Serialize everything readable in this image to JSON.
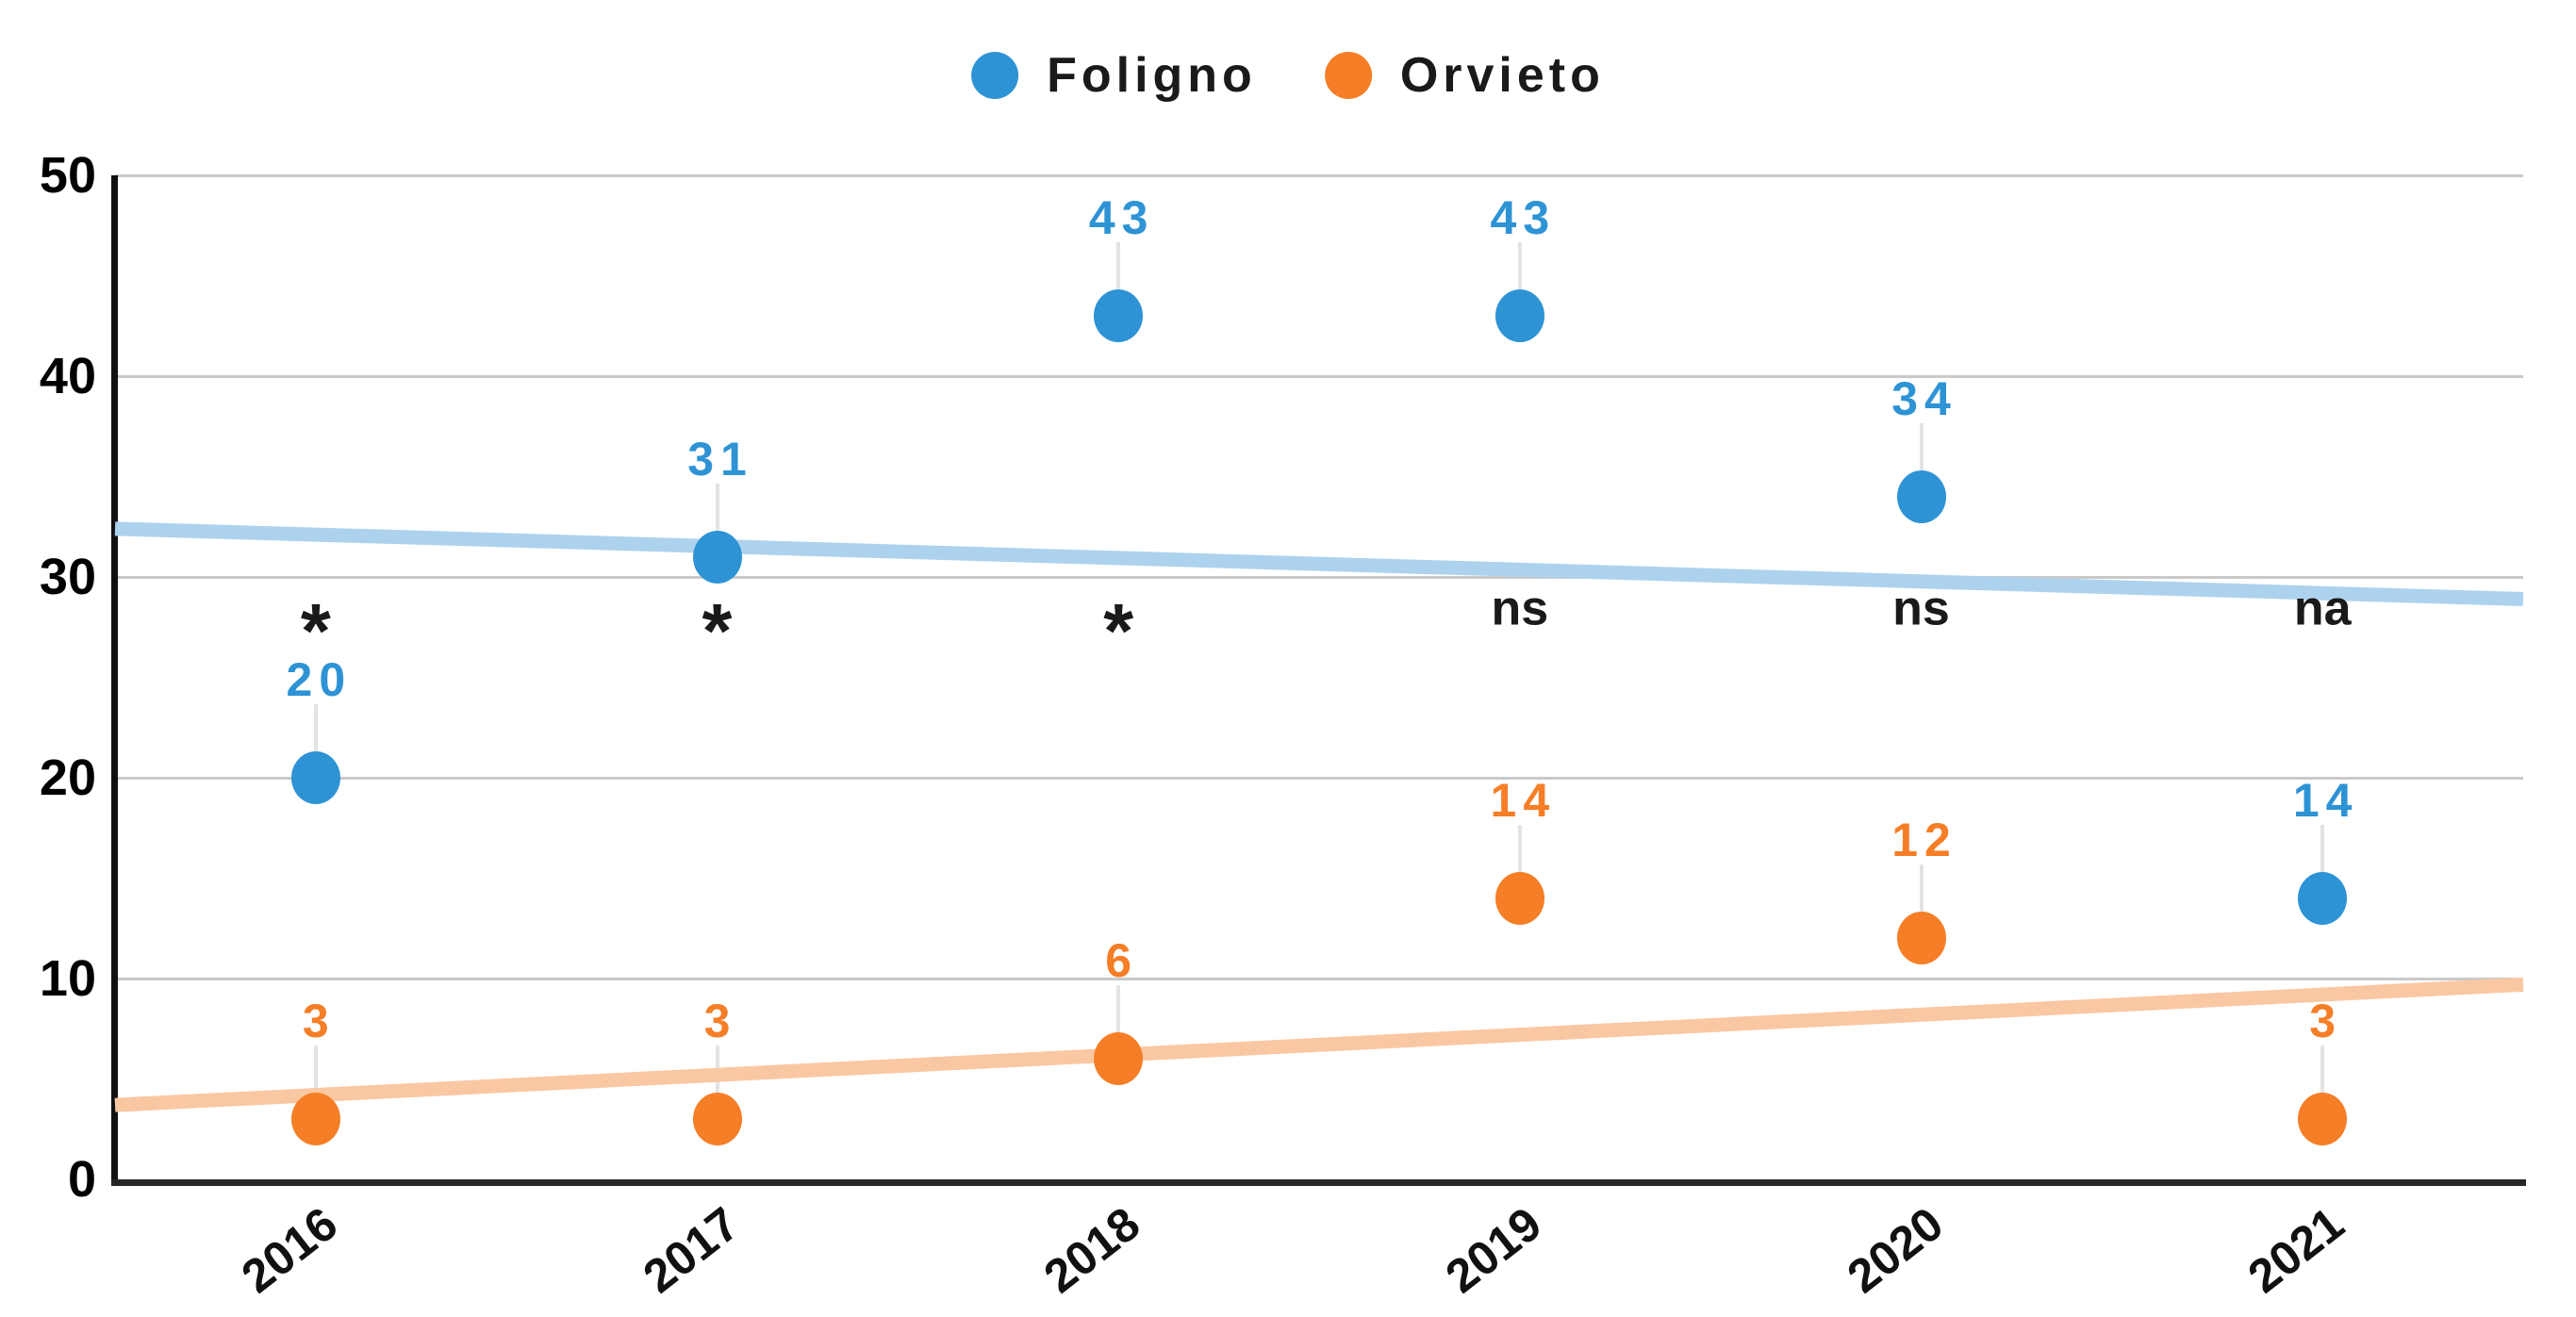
{
  "chart_data": {
    "type": "scatter",
    "title": "",
    "xlabel": "",
    "ylabel": "",
    "categories": [
      "2016",
      "2017",
      "2018",
      "2019",
      "2020",
      "2021"
    ],
    "series": [
      {
        "name": "Foligno",
        "color": "#2E93D5",
        "values": [
          20,
          31,
          43,
          43,
          34,
          14
        ],
        "point_labels": [
          "20",
          "31",
          "43",
          "43",
          "34",
          "14"
        ],
        "trendline": {
          "start_value": 32.4,
          "end_value": 28.9,
          "color": "#ADD2EE"
        }
      },
      {
        "name": "Orvieto",
        "color": "#F57E27",
        "values": [
          3,
          3,
          6,
          14,
          12,
          3
        ],
        "point_labels": [
          "3",
          "3",
          "6",
          "14",
          "12",
          "3"
        ],
        "trendline": {
          "start_value": 3.7,
          "end_value": 9.7,
          "color": "#FAC7A3"
        }
      }
    ],
    "significance_by_year": [
      "*",
      "*",
      "*",
      "ns",
      "ns",
      "na"
    ],
    "ylim": [
      0,
      50
    ],
    "yticks": [
      0,
      10,
      20,
      30,
      40,
      50
    ],
    "grid": true,
    "legend_position": "top",
    "colors": {
      "gridline": "#c9c9c9",
      "y_axis": "#111111",
      "x_axis": "#262626",
      "leader_line": "#e3e3e3",
      "annotation_text": "#1a1a1a",
      "tick_label_text": "#000000"
    }
  }
}
